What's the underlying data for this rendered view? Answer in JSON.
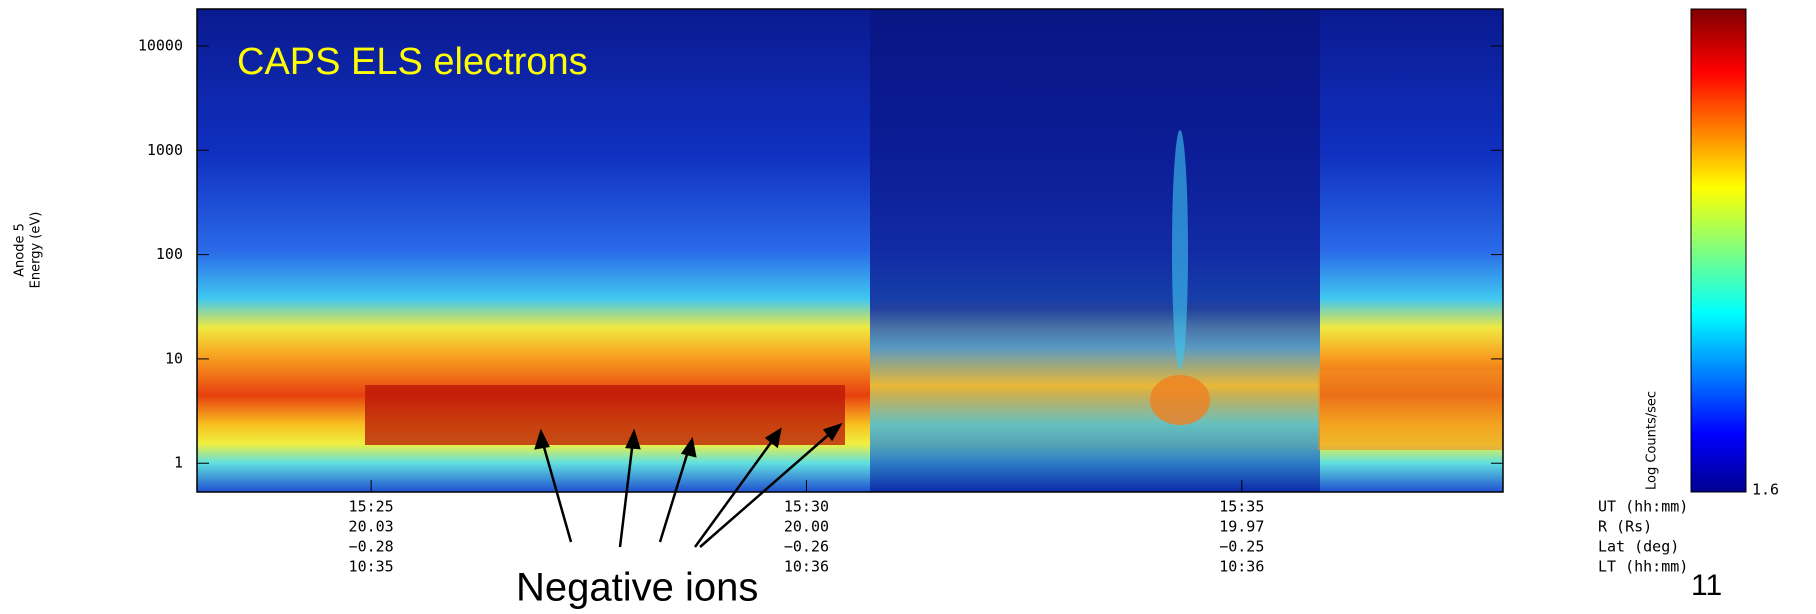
{
  "chart_data": {
    "type": "spectrogram",
    "title": "CAPS ELS electrons",
    "y_label": [
      "Anode 5",
      "Energy (eV)"
    ],
    "log_y": true,
    "ylim": [
      0.53,
      22600
    ],
    "yticks": [
      1,
      10,
      100,
      1000,
      10000
    ],
    "xlim": [
      "15:23",
      "15:38"
    ],
    "x_tick_row_names": [
      "UT (hh:mm)",
      "R (Rs)",
      "Lat (deg)",
      "LT (hh:mm)"
    ],
    "x_tick_labels": [
      [
        "15:25",
        "20.03",
        "−0.28",
        "10:35"
      ],
      [
        "15:30",
        "20.00",
        "−0.26",
        "10:36"
      ],
      [
        "15:35",
        "19.97",
        "−0.25",
        "10:36"
      ]
    ],
    "colorbar": {
      "label": "Log Counts/sec",
      "min_label": "1.6"
    },
    "annotation": "Negative ions",
    "page_number": "11"
  }
}
